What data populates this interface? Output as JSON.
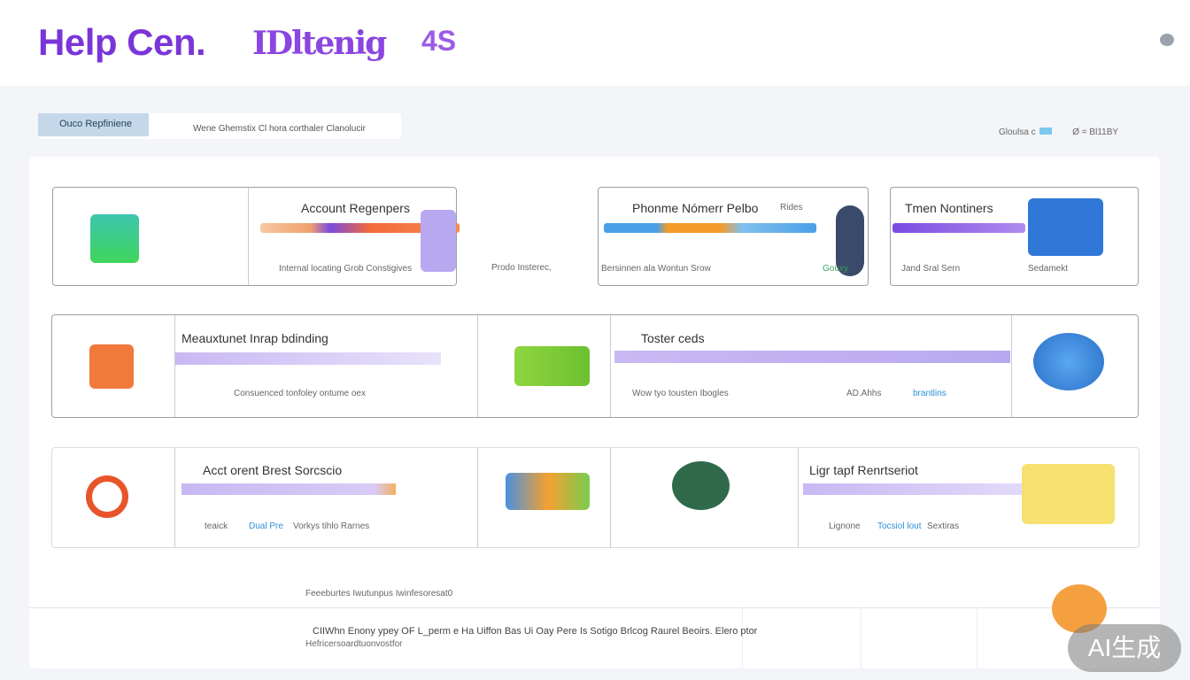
{
  "header": {
    "logo": "Help Cen.",
    "logo_secondary": "IDltenig",
    "logo_badge": "4S"
  },
  "breadcrumb": {
    "chip": "Ouco Repfiniene",
    "text": "Wene Ghemstix Cl hora corthaler Clanolucir"
  },
  "topright": {
    "left": "Gloulsa c",
    "right": "Ø = Bl11BY"
  },
  "row1": {
    "card_a": {
      "title": "Account Regenpers",
      "footer": "Internal locating Grob Constigives"
    },
    "between": "Prodo Insterec,",
    "card_b": {
      "title": "Phonme Nómerr Pelbo",
      "tag": "Rides",
      "footer": "Bersinnen ala Wontun Srow",
      "link": "Gouxy"
    },
    "card_c": {
      "title": "Tmen Nontiners",
      "footer": "Jand Sral Sern",
      "footer_right": "Sedamekt"
    }
  },
  "row2": {
    "title1": "Meauxtunet Inrap bdinding",
    "footer1": "Consuenced tonfoley ontume oex",
    "title2": "Toster ceds",
    "footer2": "Wow tyo tousten Ibogles",
    "footer2b": "AD.Ahhs",
    "link2": "brantlins"
  },
  "row3": {
    "title1": "Acct orent Brest Sorcscio",
    "footer1a": "teaick",
    "link1": "Dual Pre",
    "footer1b": "Vorkys tihlo Rarnes",
    "title2": "Ligr tapf Renrtseriot",
    "footer2a": "Lignone",
    "link2": "Tocsiol lout",
    "footer2b": "Sextiras"
  },
  "footer": {
    "note": "Feeeburtes Iwutunpus Iwinfesoresat0",
    "line1": "CIIWhn Enony ypey OF L_perm e Ha Uiffon Bas Ui Oay Pere Is Sotigo Brlcog Raurel Beoirs. Elero ptor",
    "line2": "Hefricersoardtuonvostfor"
  },
  "watermark": "AI生成",
  "colors": {
    "brand": "#7a35d8",
    "link": "#2a8fd6"
  }
}
